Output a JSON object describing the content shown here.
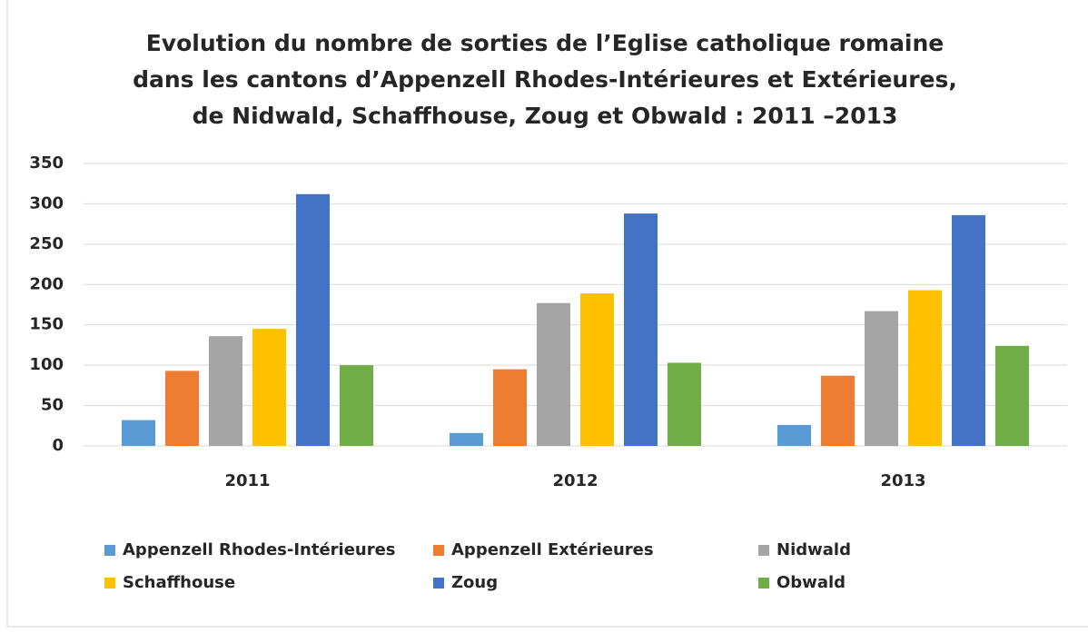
{
  "chart_data": {
    "type": "bar",
    "title": "Evolution du nombre de sorties de l’Eglise catholique romaine dans les cantons d’Appenzell Rhodes-Intérieures et Extérieures, de Nidwald, Schaffhouse, Zoug et Obwald : 2011 –2013",
    "categories": [
      "2011",
      "2012",
      "2013"
    ],
    "series": [
      {
        "name": "Appenzell Rhodes-Intérieures",
        "color": "#5b9bd5",
        "values": [
          32,
          16,
          26
        ]
      },
      {
        "name": "Appenzell Extérieures",
        "color": "#ed7d31",
        "values": [
          93,
          95,
          87
        ]
      },
      {
        "name": "Nidwald",
        "color": "#a5a5a5",
        "values": [
          136,
          177,
          167
        ]
      },
      {
        "name": "Schaffhouse",
        "color": "#ffc000",
        "values": [
          145,
          189,
          193
        ]
      },
      {
        "name": "Zoug",
        "color": "#4472c4",
        "values": [
          312,
          288,
          286
        ]
      },
      {
        "name": "Obwald",
        "color": "#70ad47",
        "values": [
          100,
          103,
          124
        ]
      }
    ],
    "ylim": [
      0,
      350
    ],
    "yticks": [
      0,
      50,
      100,
      150,
      200,
      250,
      300,
      350
    ],
    "grid": true,
    "legend": "bottom"
  }
}
